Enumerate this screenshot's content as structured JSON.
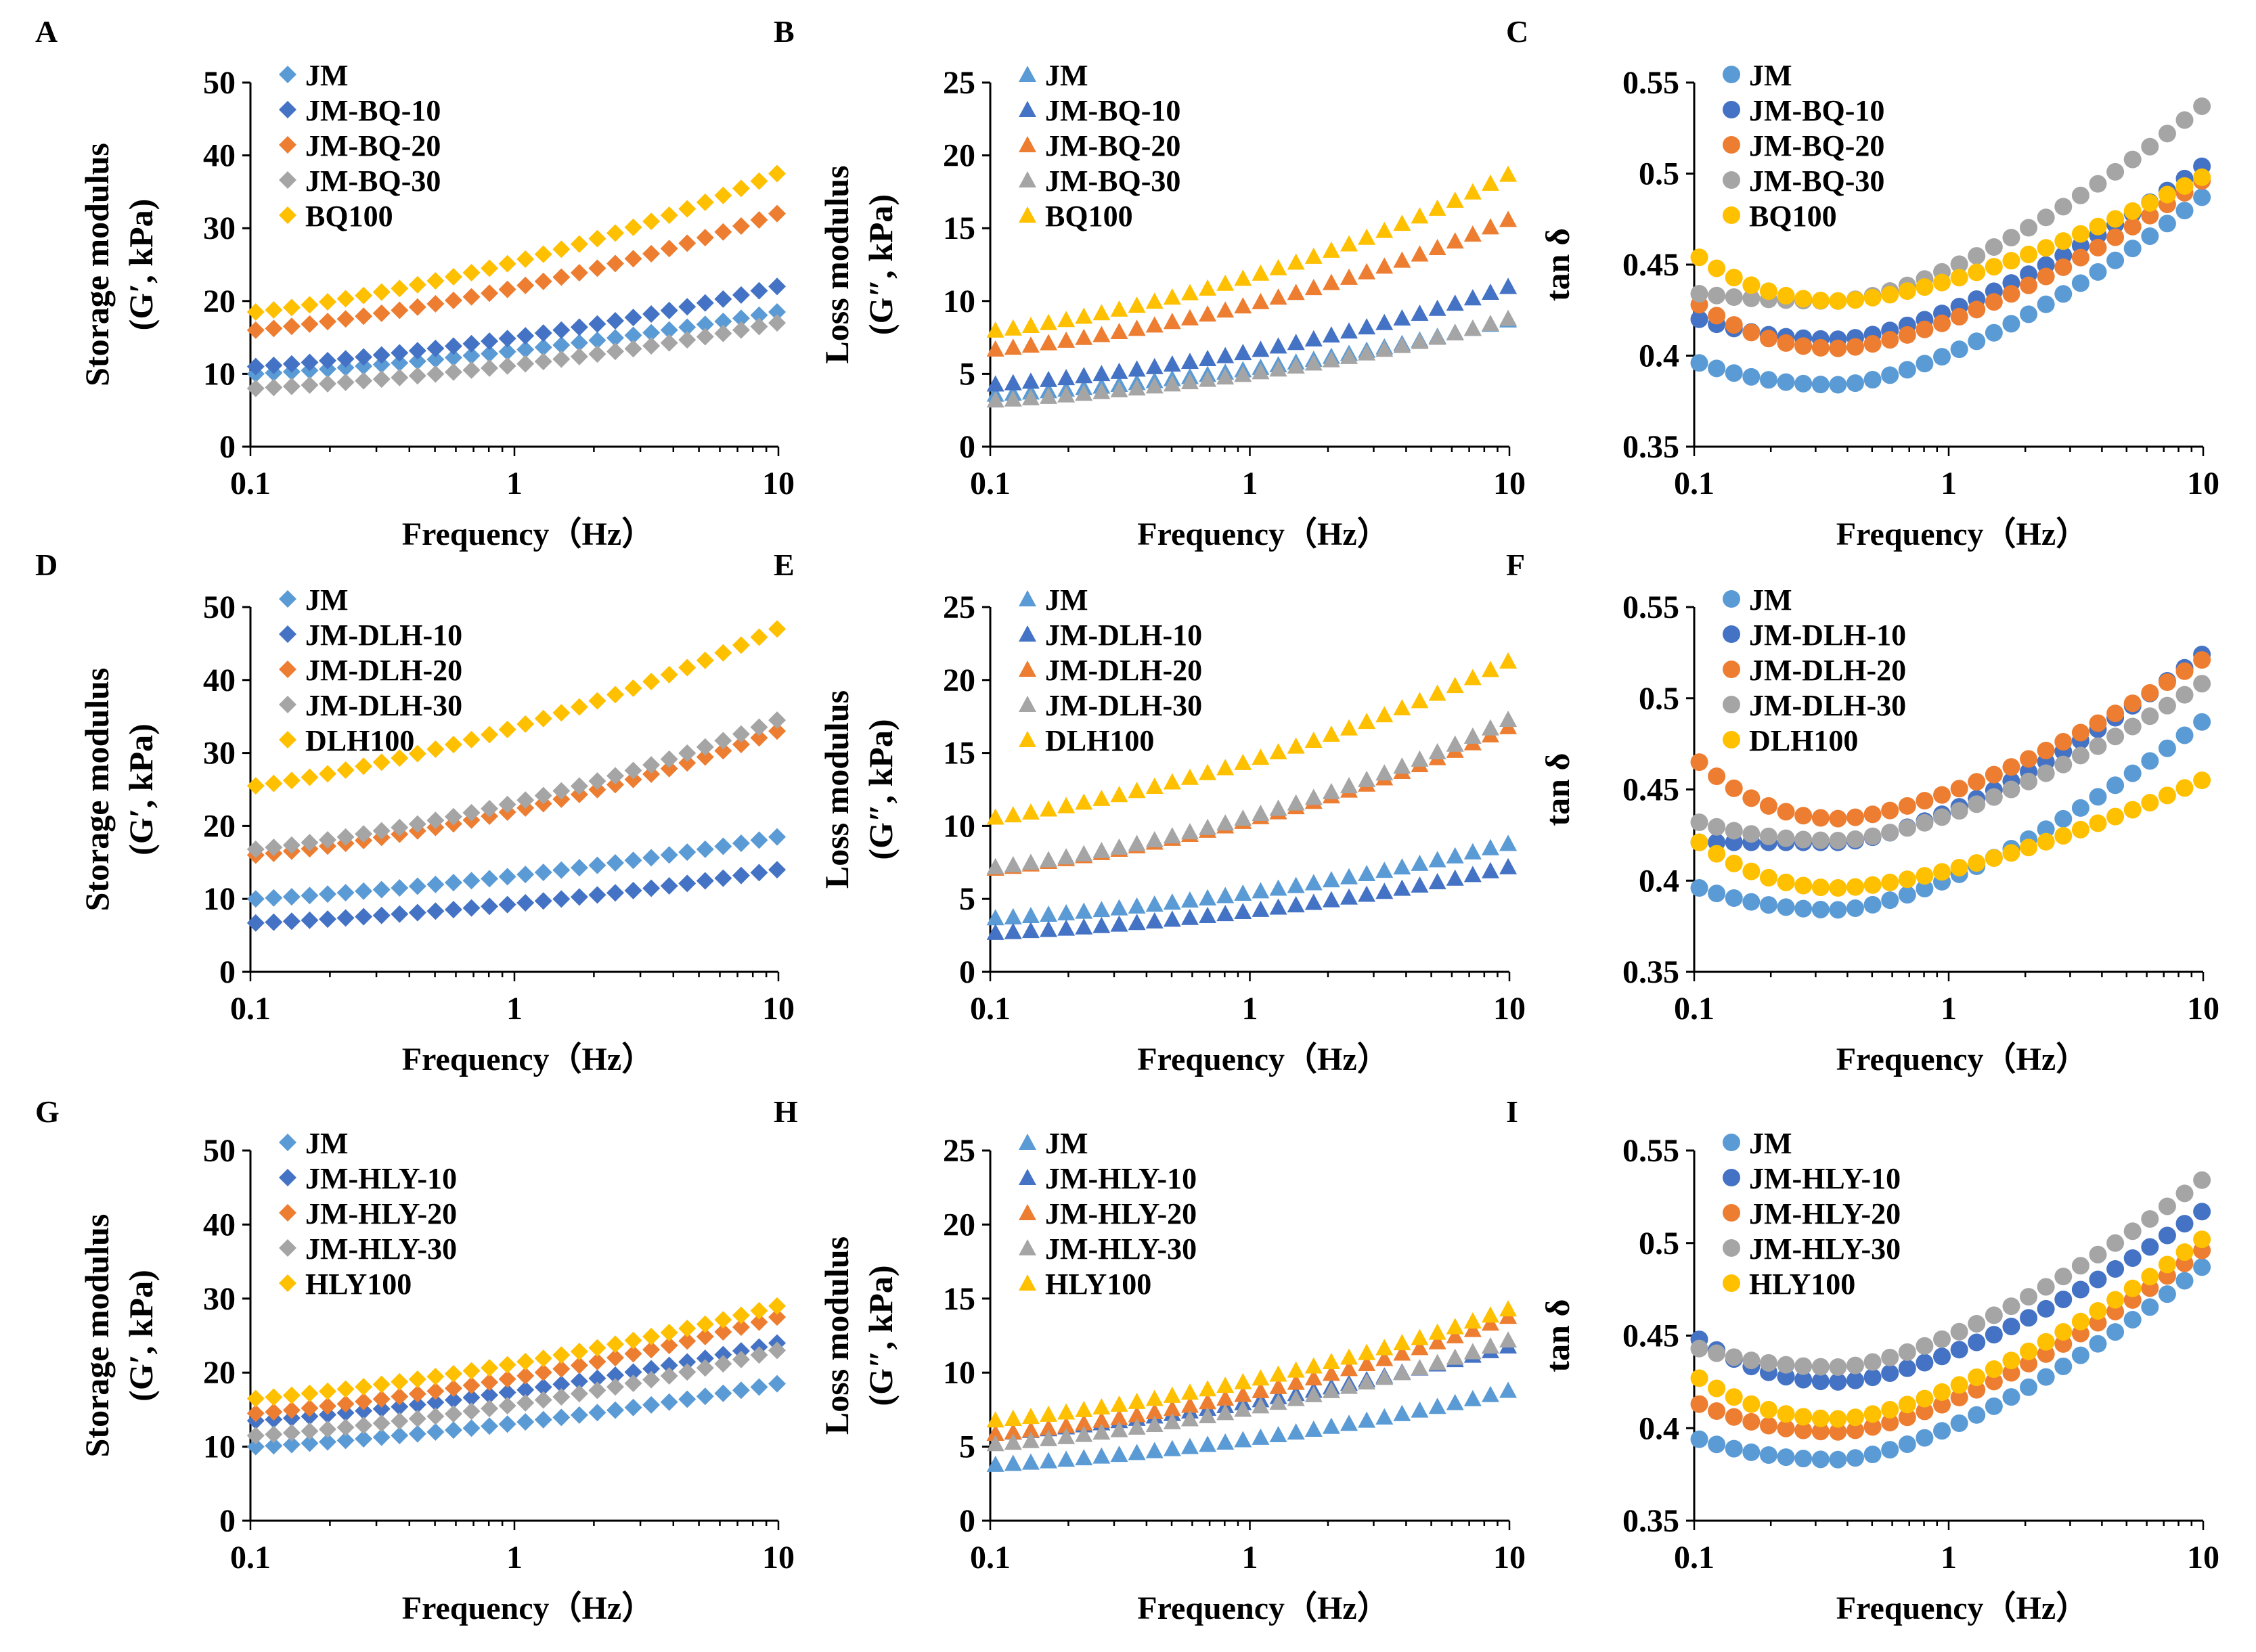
{
  "colors": {
    "JM": "#5B9BD5",
    "JM-10": "#4472C4",
    "JM-20": "#ED7D31",
    "JM-30": "#A5A5A5",
    "PURE": "#FFC000"
  },
  "chart_data": [
    {
      "panel": "A",
      "type": "scatter",
      "marker": "diamond",
      "xlabel": "Frequency（Hz）",
      "ylabel_line1": "Storage modulus",
      "ylabel_line2": "(G′, kPa)",
      "xlim": [
        0.1,
        10
      ],
      "xscale": "log",
      "xticks": [
        "0.1",
        "1",
        "10"
      ],
      "ylim": [
        0,
        50
      ],
      "yticks": [
        "0",
        "10",
        "20",
        "30",
        "40",
        "50"
      ],
      "legend": "top-left",
      "series": [
        {
          "name": "JM",
          "start": 10.0,
          "end": 18.5,
          "color_key": "JM"
        },
        {
          "name": "JM-BQ-10",
          "start": 11.0,
          "end": 22.0,
          "color_key": "JM-10"
        },
        {
          "name": "JM-BQ-20",
          "start": 16.0,
          "end": 32.0,
          "color_key": "JM-20"
        },
        {
          "name": "JM-BQ-30",
          "start": 8.0,
          "end": 17.0,
          "color_key": "JM-30"
        },
        {
          "name": "BQ100",
          "start": 18.5,
          "end": 37.5,
          "color_key": "PURE"
        }
      ]
    },
    {
      "panel": "B",
      "type": "scatter",
      "marker": "triangle",
      "xlabel": "Frequency（Hz）",
      "ylabel_line1": "Loss modulus",
      "ylabel_line2": "(G″, kPa)",
      "xlim": [
        0.1,
        10
      ],
      "xscale": "log",
      "xticks": [
        "0.1",
        "1",
        "10"
      ],
      "ylim": [
        0,
        25
      ],
      "yticks": [
        "0",
        "5",
        "10",
        "15",
        "20",
        "25"
      ],
      "legend": "top-left",
      "series": [
        {
          "name": "JM",
          "start": 3.6,
          "end": 8.7,
          "color_key": "JM"
        },
        {
          "name": "JM-BQ-10",
          "start": 4.3,
          "end": 11.0,
          "color_key": "JM-10"
        },
        {
          "name": "JM-BQ-20",
          "start": 6.7,
          "end": 15.6,
          "color_key": "JM-20"
        },
        {
          "name": "JM-BQ-30",
          "start": 3.2,
          "end": 8.8,
          "color_key": "JM-30"
        },
        {
          "name": "BQ100",
          "start": 8.0,
          "end": 18.7,
          "color_key": "PURE"
        }
      ]
    },
    {
      "panel": "C",
      "type": "scatter",
      "marker": "circle",
      "xlabel": "Frequency（Hz）",
      "ylabel_line1": "tan δ",
      "ylabel_line2": "",
      "xlim": [
        0.1,
        10
      ],
      "xscale": "log",
      "xticks": [
        "0.1",
        "1",
        "10"
      ],
      "ylim": [
        0.35,
        0.55
      ],
      "yticks": [
        "0.35",
        "0.4",
        "0.45",
        "0.5",
        "0.55"
      ],
      "legend": "top-left",
      "series": [
        {
          "name": "JM",
          "start": 0.396,
          "min": 0.384,
          "end": 0.487,
          "color_key": "JM"
        },
        {
          "name": "JM-BQ-10",
          "start": 0.42,
          "min": 0.409,
          "end": 0.504,
          "color_key": "JM-10"
        },
        {
          "name": "JM-BQ-20",
          "start": 0.428,
          "min": 0.404,
          "end": 0.496,
          "color_key": "JM-20"
        },
        {
          "name": "JM-BQ-30",
          "start": 0.434,
          "min": 0.43,
          "end": 0.537,
          "color_key": "JM-30"
        },
        {
          "name": "BQ100",
          "start": 0.454,
          "min": 0.43,
          "end": 0.498,
          "color_key": "PURE"
        }
      ]
    },
    {
      "panel": "D",
      "type": "scatter",
      "marker": "diamond",
      "xlabel": "Frequency（Hz）",
      "ylabel_line1": "Storage modulus",
      "ylabel_line2": "(G′, kPa)",
      "xlim": [
        0.1,
        10
      ],
      "xscale": "log",
      "xticks": [
        "0.1",
        "1",
        "10"
      ],
      "ylim": [
        0,
        50
      ],
      "yticks": [
        "0",
        "10",
        "20",
        "30",
        "40",
        "50"
      ],
      "legend": "top-left",
      "series": [
        {
          "name": "JM",
          "start": 10.0,
          "end": 18.5,
          "color_key": "JM"
        },
        {
          "name": "JM-DLH-10",
          "start": 6.7,
          "end": 14.0,
          "color_key": "JM-10"
        },
        {
          "name": "JM-DLH-20",
          "start": 16.0,
          "end": 33.0,
          "color_key": "JM-20"
        },
        {
          "name": "JM-DLH-30",
          "start": 16.8,
          "end": 34.5,
          "color_key": "JM-30"
        },
        {
          "name": "DLH100",
          "start": 25.5,
          "end": 47.0,
          "color_key": "PURE"
        }
      ]
    },
    {
      "panel": "E",
      "type": "scatter",
      "marker": "triangle",
      "xlabel": "Frequency（Hz）",
      "ylabel_line1": "Loss modulus",
      "ylabel_line2": "(G″, kPa)",
      "xlim": [
        0.1,
        10
      ],
      "xscale": "log",
      "xticks": [
        "0.1",
        "1",
        "10"
      ],
      "ylim": [
        0,
        25
      ],
      "yticks": [
        "0",
        "5",
        "10",
        "15",
        "20",
        "25"
      ],
      "legend": "top-left",
      "series": [
        {
          "name": "JM",
          "start": 3.7,
          "end": 8.8,
          "color_key": "JM"
        },
        {
          "name": "JM-DLH-10",
          "start": 2.7,
          "end": 7.2,
          "color_key": "JM-10"
        },
        {
          "name": "JM-DLH-20",
          "start": 7.1,
          "end": 16.8,
          "color_key": "JM-20"
        },
        {
          "name": "JM-DLH-30",
          "start": 7.2,
          "end": 17.3,
          "color_key": "JM-30"
        },
        {
          "name": "DLH100",
          "start": 10.6,
          "end": 21.3,
          "color_key": "PURE"
        }
      ]
    },
    {
      "panel": "F",
      "type": "scatter",
      "marker": "circle",
      "xlabel": "Frequency（Hz）",
      "ylabel_line1": "tan δ",
      "ylabel_line2": "",
      "xlim": [
        0.1,
        10
      ],
      "xscale": "log",
      "xticks": [
        "0.1",
        "1",
        "10"
      ],
      "ylim": [
        0.35,
        0.55
      ],
      "yticks": [
        "0.35",
        "0.4",
        "0.45",
        "0.5",
        "0.55"
      ],
      "legend": "top-left",
      "series": [
        {
          "name": "JM",
          "start": 0.396,
          "min": 0.384,
          "end": 0.487,
          "color_key": "JM"
        },
        {
          "name": "JM-DLH-10",
          "start": 0.421,
          "min": 0.421,
          "end": 0.524,
          "color_key": "JM-10"
        },
        {
          "name": "JM-DLH-20",
          "start": 0.465,
          "min": 0.434,
          "end": 0.521,
          "color_key": "JM-20"
        },
        {
          "name": "JM-DLH-30",
          "start": 0.432,
          "min": 0.422,
          "end": 0.508,
          "color_key": "JM-30"
        },
        {
          "name": "DLH100",
          "start": 0.421,
          "min": 0.396,
          "end": 0.455,
          "color_key": "PURE"
        }
      ]
    },
    {
      "panel": "G",
      "type": "scatter",
      "marker": "diamond",
      "xlabel": "Frequency（Hz）",
      "ylabel_line1": "Storage modulus",
      "ylabel_line2": "(G′, kPa)",
      "xlim": [
        0.1,
        10
      ],
      "xscale": "log",
      "xticks": [
        "0.1",
        "1",
        "10"
      ],
      "ylim": [
        0,
        50
      ],
      "yticks": [
        "0",
        "10",
        "20",
        "30",
        "40",
        "50"
      ],
      "legend": "top-left",
      "series": [
        {
          "name": "JM",
          "start": 10.0,
          "end": 18.5,
          "color_key": "JM"
        },
        {
          "name": "JM-HLY-10",
          "start": 13.5,
          "end": 24.0,
          "color_key": "JM-10"
        },
        {
          "name": "JM-HLY-20",
          "start": 14.5,
          "end": 27.5,
          "color_key": "JM-20"
        },
        {
          "name": "JM-HLY-30",
          "start": 11.5,
          "end": 23.0,
          "color_key": "JM-30"
        },
        {
          "name": "HLY100",
          "start": 16.5,
          "end": 29.0,
          "color_key": "PURE"
        }
      ]
    },
    {
      "panel": "H",
      "type": "scatter",
      "marker": "triangle",
      "xlabel": "Frequency（Hz）",
      "ylabel_line1": "Loss modulus",
      "ylabel_line2": "(G″, kPa)",
      "xlim": [
        0.1,
        10
      ],
      "xscale": "log",
      "xticks": [
        "0.1",
        "1",
        "10"
      ],
      "ylim": [
        0,
        25
      ],
      "yticks": [
        "0",
        "5",
        "10",
        "15",
        "20",
        "25"
      ],
      "legend": "top-left",
      "series": [
        {
          "name": "JM",
          "start": 3.8,
          "end": 8.8,
          "color_key": "JM"
        },
        {
          "name": "JM-HLY-10",
          "start": 5.9,
          "end": 11.8,
          "color_key": "JM-10"
        },
        {
          "name": "JM-HLY-20",
          "start": 5.9,
          "end": 13.8,
          "color_key": "JM-20"
        },
        {
          "name": "JM-HLY-30",
          "start": 5.2,
          "end": 12.2,
          "color_key": "JM-30"
        },
        {
          "name": "HLY100",
          "start": 6.8,
          "end": 14.3,
          "color_key": "PURE"
        }
      ]
    },
    {
      "panel": "I",
      "type": "scatter",
      "marker": "circle",
      "xlabel": "Frequency（Hz）",
      "ylabel_line1": "tan δ",
      "ylabel_line2": "",
      "xlim": [
        0.1,
        10
      ],
      "xscale": "log",
      "xticks": [
        "0.1",
        "1",
        "10"
      ],
      "ylim": [
        0.35,
        0.55
      ],
      "yticks": [
        "0.35",
        "0.4",
        "0.45",
        "0.5",
        "0.55"
      ],
      "legend": "top-left",
      "series": [
        {
          "name": "JM",
          "start": 0.394,
          "min": 0.383,
          "end": 0.487,
          "color_key": "JM"
        },
        {
          "name": "JM-HLY-10",
          "start": 0.448,
          "min": 0.425,
          "end": 0.517,
          "color_key": "JM-10"
        },
        {
          "name": "JM-HLY-20",
          "start": 0.413,
          "min": 0.398,
          "end": 0.496,
          "color_key": "JM-20"
        },
        {
          "name": "JM-HLY-30",
          "start": 0.443,
          "min": 0.433,
          "end": 0.534,
          "color_key": "JM-30"
        },
        {
          "name": "HLY100",
          "start": 0.427,
          "min": 0.405,
          "end": 0.502,
          "color_key": "PURE"
        }
      ]
    }
  ]
}
